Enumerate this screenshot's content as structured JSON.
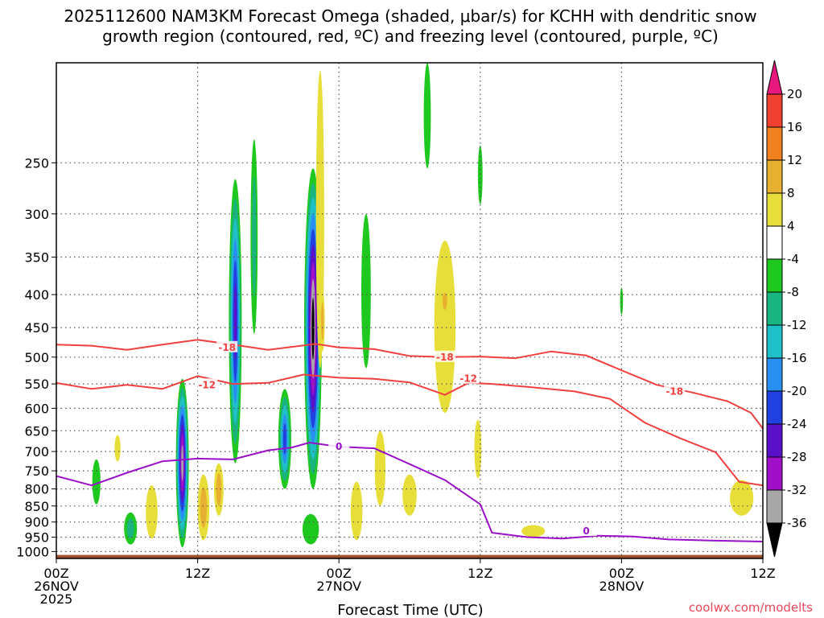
{
  "chart_data": {
    "type": "heatmap",
    "title_line1": "2025112600 NAM3KM Forecast Omega (shaded, μbar/s) for KCHH with dendritic snow",
    "title_line2": "growth region (contoured, red, ºC) and freezing level (contoured, purple, ºC)",
    "xlabel": "Forecast Time (UTC)",
    "credit": "coolwx.com/modelts",
    "x_range_hours": [
      0,
      60
    ],
    "y_range_hpa": [
      1025,
      175
    ],
    "y_ticks": [
      250,
      300,
      350,
      400,
      450,
      500,
      550,
      600,
      650,
      700,
      750,
      800,
      850,
      900,
      950,
      1000
    ],
    "x_ticks": [
      {
        "hour": 0,
        "lines": [
          "00Z",
          "26NOV",
          "2025"
        ]
      },
      {
        "hour": 12,
        "lines": [
          "12Z"
        ]
      },
      {
        "hour": 24,
        "lines": [
          "00Z",
          "27NOV"
        ]
      },
      {
        "hour": 36,
        "lines": [
          "12Z"
        ]
      },
      {
        "hour": 48,
        "lines": [
          "00Z",
          "28NOV"
        ]
      },
      {
        "hour": 60,
        "lines": [
          "12Z"
        ]
      }
    ],
    "colorbar": {
      "labels": [
        "20",
        "16",
        "12",
        "8",
        "4",
        "-4",
        "-8",
        "-12",
        "-16",
        "-20",
        "-24",
        "-28",
        "-32",
        "-36"
      ],
      "bands": [
        {
          "min": 20,
          "max": 24,
          "color": "#e8187e"
        },
        {
          "min": 16,
          "max": 20,
          "color": "#f04030"
        },
        {
          "min": 12,
          "max": 16,
          "color": "#f08020"
        },
        {
          "min": 8,
          "max": 12,
          "color": "#e8b030"
        },
        {
          "min": 4,
          "max": 8,
          "color": "#e8de3a"
        },
        {
          "min": -4,
          "max": 4,
          "color": "#ffffff"
        },
        {
          "min": -8,
          "max": -4,
          "color": "#1ec81e"
        },
        {
          "min": -12,
          "max": -8,
          "color": "#19b480"
        },
        {
          "min": -16,
          "max": -12,
          "color": "#20c0c8"
        },
        {
          "min": -20,
          "max": -16,
          "color": "#2890f0"
        },
        {
          "min": -24,
          "max": -20,
          "color": "#2040e0"
        },
        {
          "min": -28,
          "max": -24,
          "color": "#5a10c8"
        },
        {
          "min": -32,
          "max": -28,
          "color": "#a010c8"
        },
        {
          "min": -36,
          "max": -32,
          "color": "#a8a8a8"
        },
        {
          "min": -40,
          "max": -36,
          "color": "#000000"
        }
      ]
    },
    "omega_blobs": [
      {
        "hour": 10.7,
        "p_top": 540,
        "p_bot": 985,
        "w": 0.55,
        "value": -32
      },
      {
        "hour": 3.4,
        "p_top": 720,
        "p_bot": 845,
        "w": 0.35,
        "value": -6
      },
      {
        "hour": 6.3,
        "p_top": 870,
        "p_bot": 975,
        "w": 0.55,
        "value": -8
      },
      {
        "hour": 15.2,
        "p_top": 265,
        "p_bot": 730,
        "w": 0.55,
        "value": -26
      },
      {
        "hour": 16.8,
        "p_top": 230,
        "p_bot": 460,
        "w": 0.3,
        "value": -8
      },
      {
        "hour": 19.4,
        "p_top": 560,
        "p_bot": 800,
        "w": 0.55,
        "value": -22
      },
      {
        "hour": 21.8,
        "p_top": 255,
        "p_bot": 800,
        "w": 0.75,
        "value": -38
      },
      {
        "hour": 21.6,
        "p_top": 875,
        "p_bot": 975,
        "w": 0.7,
        "value": -7
      },
      {
        "hour": 26.3,
        "p_top": 300,
        "p_bot": 520,
        "w": 0.4,
        "value": -7
      },
      {
        "hour": 31.5,
        "p_top": 175,
        "p_bot": 255,
        "w": 0.3,
        "value": -6
      },
      {
        "hour": 36.0,
        "p_top": 235,
        "p_bot": 290,
        "w": 0.2,
        "value": -6
      },
      {
        "hour": 48.0,
        "p_top": 390,
        "p_bot": 430,
        "w": 0.12,
        "value": -5
      },
      {
        "hour": 22.4,
        "p_top": 180,
        "p_bot": 520,
        "w": 0.35,
        "value": 7
      },
      {
        "hour": 22.6,
        "p_top": 395,
        "p_bot": 490,
        "w": 0.2,
        "value": 11
      },
      {
        "hour": 33.0,
        "p_top": 330,
        "p_bot": 610,
        "w": 0.9,
        "value": 6
      },
      {
        "hour": 33.0,
        "p_top": 390,
        "p_bot": 430,
        "w": 0.35,
        "value": 10
      },
      {
        "hour": 35.8,
        "p_top": 625,
        "p_bot": 770,
        "w": 0.3,
        "value": 5
      },
      {
        "hour": 27.5,
        "p_top": 650,
        "p_bot": 850,
        "w": 0.45,
        "value": 5
      },
      {
        "hour": 25.5,
        "p_top": 780,
        "p_bot": 960,
        "w": 0.5,
        "value": 6
      },
      {
        "hour": 8.1,
        "p_top": 790,
        "p_bot": 955,
        "w": 0.5,
        "value": 7
      },
      {
        "hour": 12.5,
        "p_top": 760,
        "p_bot": 960,
        "w": 0.5,
        "value": 9
      },
      {
        "hour": 13.8,
        "p_top": 730,
        "p_bot": 880,
        "w": 0.4,
        "value": 10
      },
      {
        "hour": 5.2,
        "p_top": 660,
        "p_bot": 725,
        "w": 0.25,
        "value": 6
      },
      {
        "hour": 40.5,
        "p_top": 910,
        "p_bot": 950,
        "w": 1.0,
        "value": 5
      },
      {
        "hour": 58.2,
        "p_top": 775,
        "p_bot": 880,
        "w": 1.0,
        "value": 5
      },
      {
        "hour": 30.0,
        "p_top": 760,
        "p_bot": 880,
        "w": 0.6,
        "value": 5
      }
    ],
    "dgz_top": {
      "label": "-18",
      "color": "#f04040",
      "label_positions": [
        [
          14.5,
          483
        ],
        [
          33.0,
          500
        ],
        [
          52.5,
          565
        ]
      ],
      "points": [
        [
          0,
          478
        ],
        [
          3,
          480
        ],
        [
          6,
          487
        ],
        [
          9,
          478
        ],
        [
          12,
          470
        ],
        [
          15,
          478
        ],
        [
          18,
          487
        ],
        [
          22,
          477
        ],
        [
          24,
          483
        ],
        [
          27,
          486
        ],
        [
          30,
          498
        ],
        [
          33,
          500
        ],
        [
          36,
          499
        ],
        [
          39,
          502
        ],
        [
          42,
          490
        ],
        [
          45,
          497
        ],
        [
          48,
          524
        ],
        [
          51,
          552
        ],
        [
          54,
          567
        ],
        [
          57,
          585
        ],
        [
          59,
          610
        ],
        [
          60,
          645
        ]
      ]
    },
    "dgz_bottom": {
      "label": "-12",
      "color": "#f04040",
      "label_positions": [
        [
          12.8,
          552
        ],
        [
          35.0,
          540
        ]
      ],
      "points": [
        [
          0,
          548
        ],
        [
          3,
          560
        ],
        [
          6,
          552
        ],
        [
          9,
          560
        ],
        [
          12,
          535
        ],
        [
          15,
          550
        ],
        [
          18,
          548
        ],
        [
          21,
          532
        ],
        [
          24,
          538
        ],
        [
          27,
          540
        ],
        [
          30,
          547
        ],
        [
          33,
          572
        ],
        [
          35,
          548
        ],
        [
          37,
          550
        ],
        [
          40,
          556
        ],
        [
          44,
          565
        ],
        [
          47,
          580
        ],
        [
          50,
          632
        ],
        [
          53,
          668
        ],
        [
          56,
          702
        ],
        [
          58,
          780
        ],
        [
          60,
          790
        ]
      ]
    },
    "freezing_level": {
      "label": "0",
      "color": "#9a10c8",
      "label_positions": [
        [
          24.0,
          688
        ],
        [
          45.0,
          930
        ]
      ],
      "points": [
        [
          0,
          764
        ],
        [
          3,
          790
        ],
        [
          6,
          755
        ],
        [
          9,
          725
        ],
        [
          12,
          718
        ],
        [
          15,
          720
        ],
        [
          18,
          697
        ],
        [
          20,
          690
        ],
        [
          21.5,
          678
        ],
        [
          24,
          688
        ],
        [
          27,
          692
        ],
        [
          30,
          732
        ],
        [
          33,
          775
        ],
        [
          36,
          845
        ],
        [
          37,
          935
        ],
        [
          40,
          950
        ],
        [
          43,
          955
        ],
        [
          46,
          945
        ],
        [
          49,
          948
        ],
        [
          52,
          958
        ],
        [
          56,
          962
        ],
        [
          60,
          965
        ]
      ]
    },
    "ground": {
      "color": "#a0522d",
      "p_top": 1012
    }
  }
}
